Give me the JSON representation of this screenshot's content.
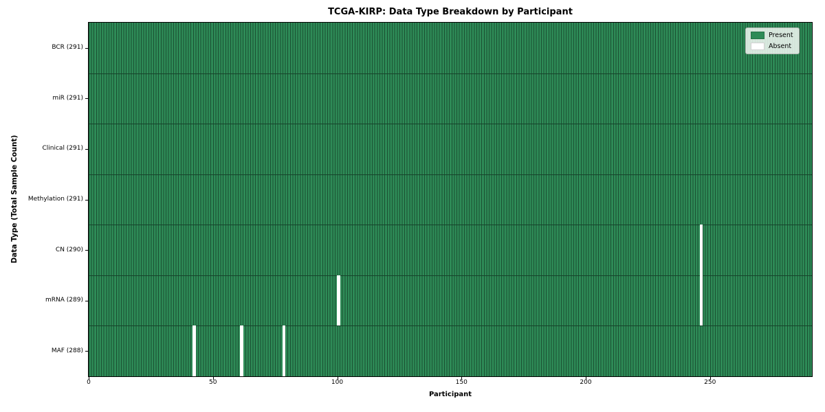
{
  "chart_data": {
    "type": "heatmap",
    "title": "TCGA-KIRP: Data Type Breakdown by Participant",
    "xlabel": "Participant",
    "ylabel": "Data Type (Total Sample Count)",
    "n_participants": 291,
    "x_range": [
      0,
      291
    ],
    "x_ticks": [
      "0",
      "50",
      "100",
      "150",
      "200",
      "250"
    ],
    "x_tick_values": [
      0,
      50,
      100,
      150,
      200,
      250
    ],
    "grid": "cell-edges",
    "rows": [
      {
        "label": "BCR (291)",
        "data_type": "BCR",
        "present_count": 291,
        "absent_participants": []
      },
      {
        "label": "miR (291)",
        "data_type": "miR",
        "present_count": 291,
        "absent_participants": []
      },
      {
        "label": "Clinical (291)",
        "data_type": "Clinical",
        "present_count": 291,
        "absent_participants": []
      },
      {
        "label": "Methylation (291)",
        "data_type": "Methylation",
        "present_count": 291,
        "absent_participants": []
      },
      {
        "label": "CN (290)",
        "data_type": "CN",
        "present_count": 290,
        "absent_participants": [
          246
        ]
      },
      {
        "label": "mRNA (289)",
        "data_type": "mRNA",
        "present_count": 289,
        "absent_participants": [
          100,
          246
        ]
      },
      {
        "label": "MAF (288)",
        "data_type": "MAF",
        "present_count": 288,
        "absent_participants": [
          42,
          61,
          78
        ]
      }
    ],
    "legend": {
      "position": "upper right",
      "items": [
        {
          "label": "Present",
          "color": "#2e8b57"
        },
        {
          "label": "Absent",
          "color": "#ffffff"
        }
      ]
    },
    "colors": {
      "present": "#2e8b57",
      "absent": "#ffffff",
      "cell_edge": "#1a4f31",
      "row_divider": "#16422a",
      "axis": "#000000",
      "background": "#ffffff"
    }
  }
}
